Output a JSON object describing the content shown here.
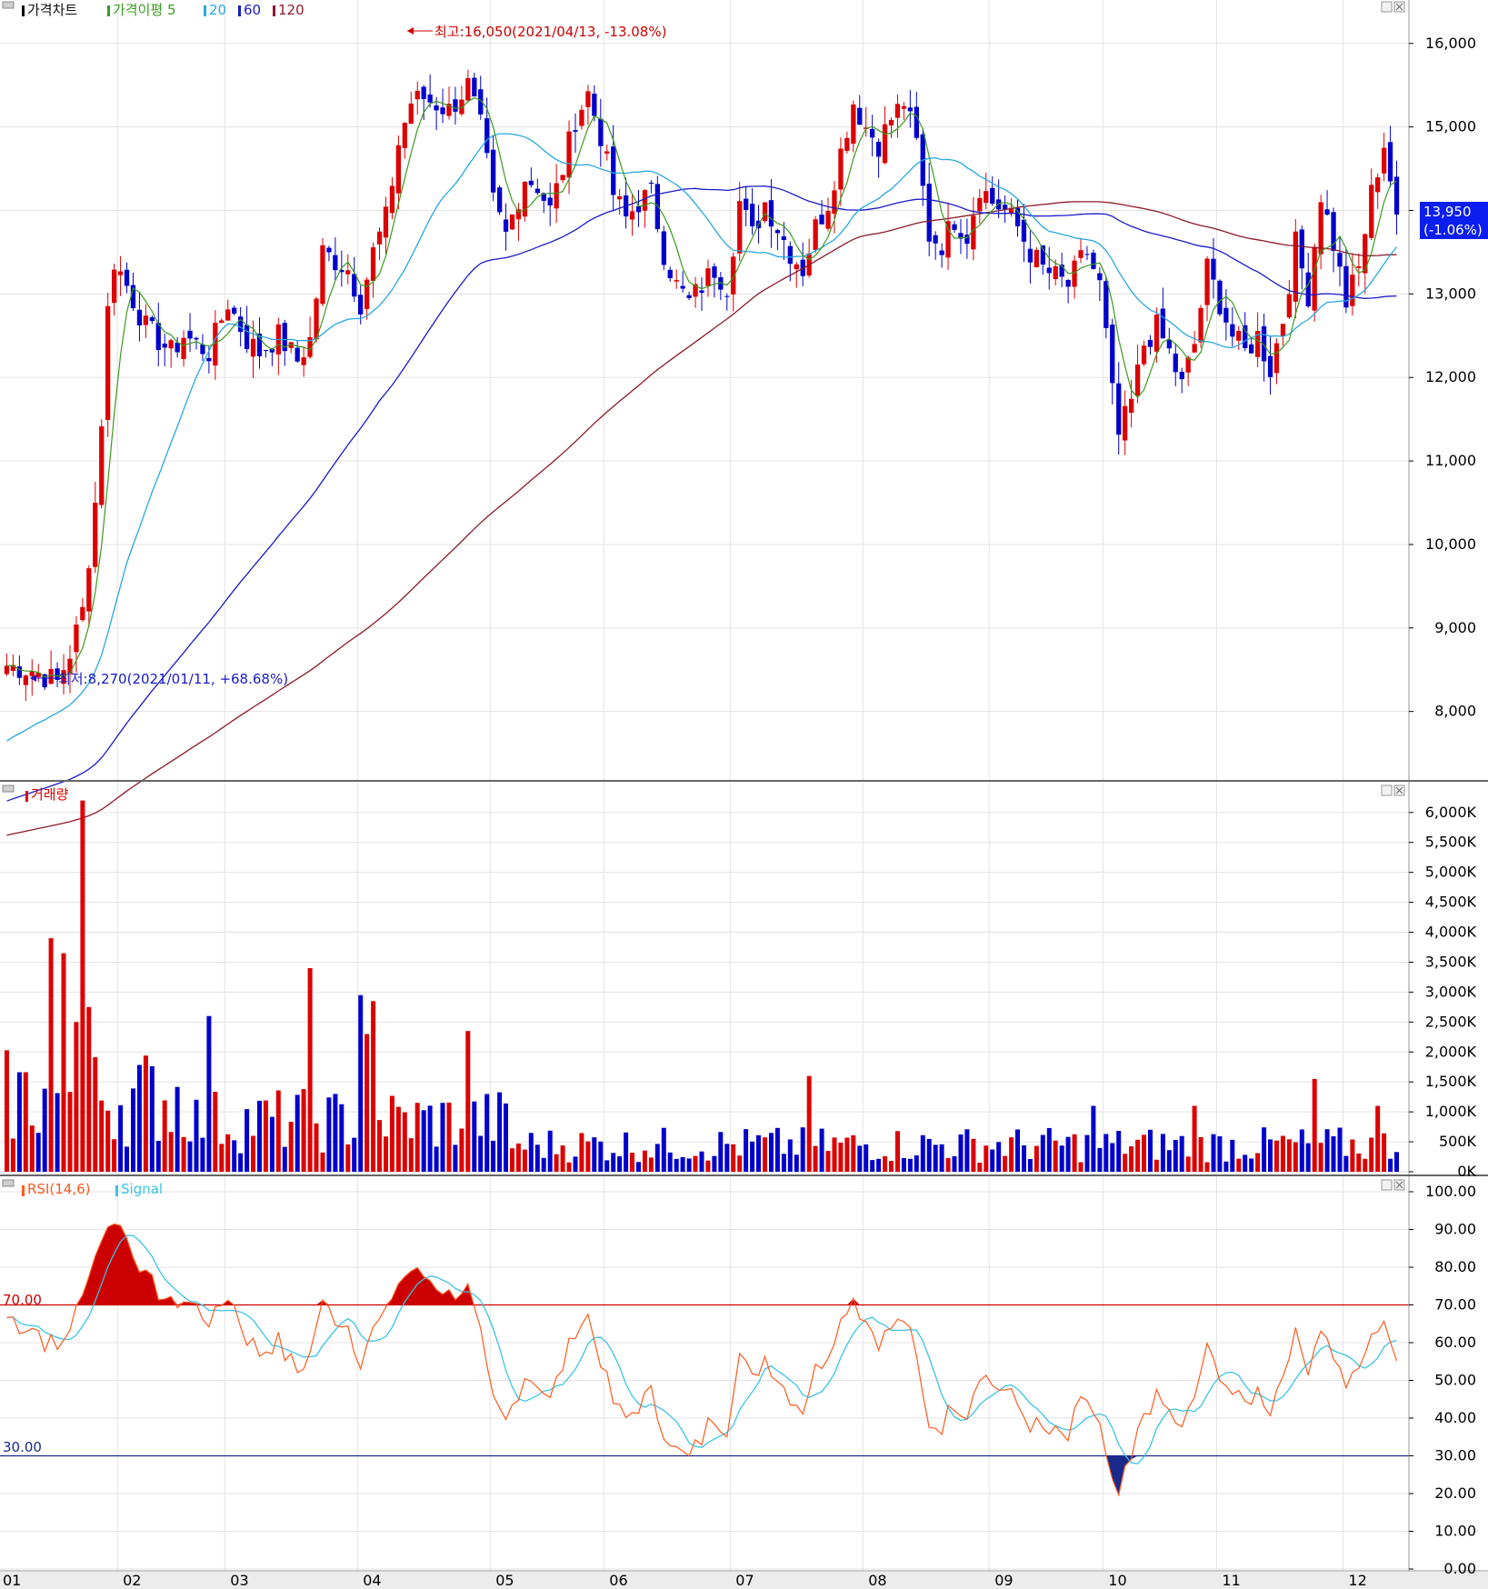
{
  "colors": {
    "up": "#dd0000",
    "down": "#0000cc",
    "ma5": "#3a9b1e",
    "ma20": "#27a7e0",
    "ma60": "#1a1ac8",
    "ma120": "#8b1a2a",
    "rsi": "#ff5a1e",
    "signal": "#3cc3e6",
    "overbought": "#cc0000",
    "oversold": "#1a2a8c",
    "grid": "#e3e3e3",
    "axis": "#000000",
    "tagbg": "#0a1ef0"
  },
  "chart_data": [
    {
      "type": "candlestick",
      "title": "가격차트",
      "legend": [
        {
          "label": "가격차트",
          "color": "#111111"
        },
        {
          "label": "가격이평 5",
          "color": "#3a9b1e"
        },
        {
          "label": "20",
          "color": "#27a7e0"
        },
        {
          "label": "60",
          "color": "#1a1ac8"
        },
        {
          "label": "120",
          "color": "#8b1a2a"
        }
      ],
      "y_ticks": [
        "16,000",
        "15,000",
        "14,000",
        "13,000",
        "12,000",
        "11,000",
        "10,000",
        "9,000",
        "8,000"
      ],
      "y_tick_values": [
        16000,
        15000,
        14000,
        13000,
        12000,
        11000,
        10000,
        9000,
        8000
      ],
      "ylim": [
        7180,
        16520
      ],
      "months": [
        "01",
        "02",
        "03",
        "04",
        "05",
        "06",
        "07",
        "08",
        "09",
        "10",
        "11",
        "12"
      ],
      "high_annotation": "최고:16,050(2021/04/13, -13.08%)",
      "low_annotation": "최저:8,270(2021/01/11, +68.68%)",
      "last_price": "13,950",
      "last_change": "(-1.06%)",
      "close_path": [
        [
          0,
          8550
        ],
        [
          4,
          8500
        ],
        [
          8,
          8350
        ],
        [
          10,
          8700
        ],
        [
          12,
          9200
        ],
        [
          14,
          10500
        ],
        [
          15,
          11500
        ],
        [
          16,
          12800
        ],
        [
          17,
          13400
        ],
        [
          19,
          13100
        ],
        [
          22,
          12600
        ],
        [
          26,
          12300
        ],
        [
          28,
          12500
        ],
        [
          30,
          12400
        ],
        [
          32,
          12300
        ],
        [
          35,
          12900
        ],
        [
          38,
          12450
        ],
        [
          40,
          12300
        ],
        [
          43,
          12500
        ],
        [
          46,
          12200
        ],
        [
          48,
          12450
        ],
        [
          50,
          13500
        ],
        [
          54,
          13300
        ],
        [
          56,
          12900
        ],
        [
          58,
          13500
        ],
        [
          60,
          13900
        ],
        [
          62,
          14800
        ],
        [
          64,
          15300
        ],
        [
          66,
          15350
        ],
        [
          70,
          15200
        ],
        [
          73,
          15500
        ],
        [
          75,
          15000
        ],
        [
          77,
          14100
        ],
        [
          79,
          13700
        ],
        [
          82,
          14400
        ],
        [
          84,
          14300
        ],
        [
          86,
          14000
        ],
        [
          88,
          14500
        ],
        [
          90,
          15100
        ],
        [
          92,
          15400
        ],
        [
          94,
          14900
        ],
        [
          96,
          14200
        ],
        [
          98,
          13900
        ],
        [
          100,
          14100
        ],
        [
          102,
          14200
        ],
        [
          104,
          13500
        ],
        [
          106,
          13100
        ],
        [
          108,
          12900
        ],
        [
          110,
          13100
        ],
        [
          112,
          13300
        ],
        [
          114,
          13100
        ],
        [
          116,
          14100
        ],
        [
          118,
          13700
        ],
        [
          120,
          14100
        ],
        [
          122,
          13800
        ],
        [
          124,
          13500
        ],
        [
          126,
          13300
        ],
        [
          128,
          13800
        ],
        [
          130,
          14100
        ],
        [
          132,
          14700
        ],
        [
          134,
          15300
        ],
        [
          136,
          15000
        ],
        [
          138,
          14800
        ],
        [
          140,
          15100
        ],
        [
          142,
          15300
        ],
        [
          144,
          14800
        ],
        [
          146,
          13700
        ],
        [
          148,
          13600
        ],
        [
          150,
          13900
        ],
        [
          152,
          13700
        ],
        [
          154,
          14300
        ],
        [
          156,
          14100
        ],
        [
          158,
          14000
        ],
        [
          160,
          13800
        ],
        [
          162,
          13500
        ],
        [
          164,
          13300
        ],
        [
          166,
          13200
        ],
        [
          168,
          13100
        ],
        [
          170,
          13400
        ],
        [
          171,
          13500
        ],
        [
          173,
          13100
        ],
        [
          174,
          12500
        ],
        [
          175,
          11800
        ],
        [
          176,
          11300
        ],
        [
          178,
          11700
        ],
        [
          180,
          12400
        ],
        [
          182,
          12600
        ],
        [
          184,
          12300
        ],
        [
          186,
          11900
        ],
        [
          188,
          12400
        ],
        [
          190,
          13300
        ],
        [
          192,
          12900
        ],
        [
          194,
          12500
        ],
        [
          196,
          12300
        ],
        [
          198,
          12500
        ],
        [
          200,
          12100
        ],
        [
          202,
          12700
        ],
        [
          204,
          13600
        ],
        [
          206,
          13000
        ],
        [
          208,
          14200
        ],
        [
          210,
          13600
        ],
        [
          212,
          12900
        ],
        [
          214,
          13300
        ],
        [
          216,
          14200
        ],
        [
          218,
          14800
        ],
        [
          220,
          13950
        ]
      ],
      "candle_count": 221,
      "x_months_index": [
        0,
        18,
        35,
        56,
        77,
        95,
        115,
        136,
        156,
        174,
        192,
        212
      ]
    },
    {
      "type": "bar",
      "title": "거래량",
      "y_ticks": [
        "6,000K",
        "5,500K",
        "5,000K",
        "4,500K",
        "4,000K",
        "3,500K",
        "3,000K",
        "2,500K",
        "2,000K",
        "1,500K",
        "1,000K",
        "500K",
        "0K"
      ],
      "y_tick_values": [
        6000,
        5500,
        5000,
        4500,
        4000,
        3500,
        3000,
        2500,
        2000,
        1500,
        1000,
        500,
        0
      ],
      "ylim": [
        0,
        6300
      ],
      "spikes": [
        [
          7,
          3900
        ],
        [
          9,
          3650
        ],
        [
          11,
          2500
        ],
        [
          12,
          6200
        ],
        [
          13,
          2750
        ],
        [
          32,
          2600
        ],
        [
          48,
          3400
        ],
        [
          56,
          2950
        ],
        [
          57,
          2300
        ],
        [
          58,
          2850
        ],
        [
          73,
          2350
        ],
        [
          127,
          1600
        ],
        [
          172,
          1100
        ],
        [
          188,
          1100
        ],
        [
          207,
          1550
        ],
        [
          217,
          1100
        ]
      ]
    },
    {
      "type": "line",
      "title": "RSI(14,6)",
      "legend": [
        {
          "label": "RSI(14,6)",
          "color": "#ff5a1e"
        },
        {
          "label": "Signal",
          "color": "#3cc3e6"
        }
      ],
      "y_ticks": [
        "100.00",
        "90.00",
        "80.00",
        "70.00",
        "60.00",
        "50.00",
        "40.00",
        "30.00",
        "20.00",
        "10.00",
        "0.00"
      ],
      "y_tick_values": [
        100,
        90,
        80,
        70,
        60,
        50,
        40,
        30,
        20,
        10,
        0
      ],
      "ylim": [
        0,
        100
      ],
      "overbought": 70,
      "overbought_label": "70.00",
      "oversold": 30,
      "oversold_label": "30.00"
    }
  ],
  "x_axis_labels": [
    "01",
    "02",
    "03",
    "04",
    "05",
    "06",
    "07",
    "08",
    "09",
    "10",
    "11",
    "12"
  ]
}
